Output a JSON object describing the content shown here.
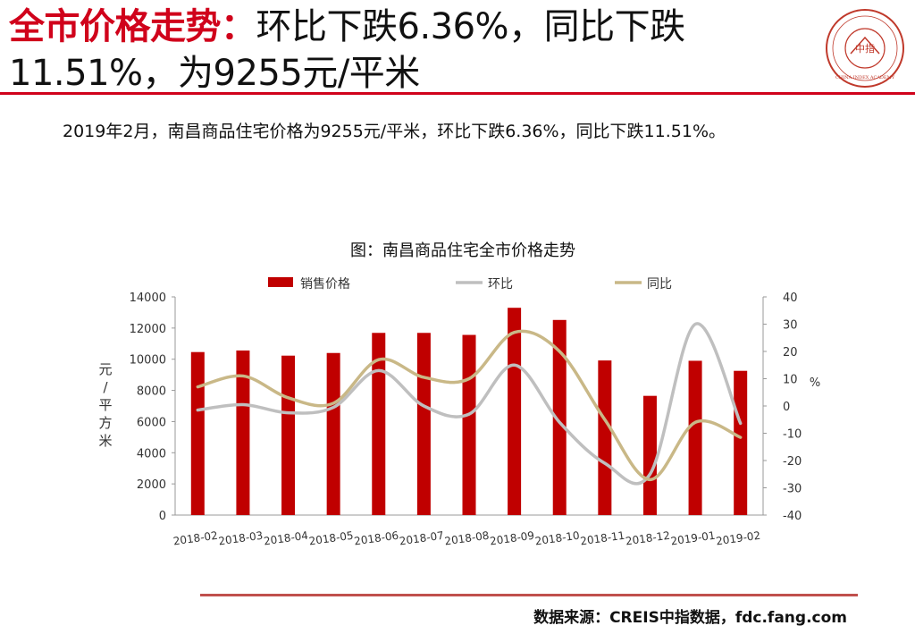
{
  "header": {
    "title_highlight": "全市价格走势：",
    "title_rest": "环比下跌6.36%，同比下跌11.51%，为9255元/平米"
  },
  "summary": "2019年2月，南昌商品住宅价格为9255元/平米，环比下跌6.36%，同比下跌11.51%。",
  "colors": {
    "accent": "#d0021b",
    "bar": "#c00000",
    "mom_line": "#bfbfbf",
    "yoy_line": "#c9b887"
  },
  "logo": {
    "icon": "china-index-academy-seal",
    "center_text": "中指",
    "ring_text": "CHINA INDEX ACADEMY"
  },
  "chart_data": {
    "type": "bar",
    "title": "图：南昌商品住宅全市价格走势",
    "categories": [
      "2018-02",
      "2018-03",
      "2018-04",
      "2018-05",
      "2018-06",
      "2018-07",
      "2018-08",
      "2018-09",
      "2018-10",
      "2018-11",
      "2018-12",
      "2019-01",
      "2019-02"
    ],
    "series": [
      {
        "name": "销售价格",
        "type": "bar",
        "axis": "left",
        "values": [
          10460,
          10560,
          10230,
          10400,
          11690,
          11690,
          11560,
          13300,
          12520,
          9920,
          7650,
          9900,
          9255
        ]
      },
      {
        "name": "环比",
        "type": "line",
        "axis": "right",
        "values": [
          -1.5,
          0.5,
          -2.5,
          -0.5,
          13,
          0,
          -3,
          15,
          -6,
          -21,
          -25,
          30,
          -6.36
        ]
      },
      {
        "name": "同比",
        "type": "line",
        "axis": "right",
        "values": [
          7,
          11,
          3,
          1,
          17,
          10.5,
          10,
          27,
          20,
          -5,
          -27,
          -6,
          -11.51
        ]
      }
    ],
    "y_left": {
      "label": "元/平方米",
      "min": 0,
      "max": 14000,
      "ticks": [
        0,
        2000,
        4000,
        6000,
        8000,
        10000,
        12000,
        14000
      ]
    },
    "y_right": {
      "label": "%",
      "min": -40,
      "max": 40,
      "ticks": [
        -40,
        -30,
        -20,
        -10,
        0,
        10,
        20,
        30,
        40
      ]
    },
    "legend_position": "top",
    "grid": false
  },
  "footer": {
    "source": "数据来源：CREIS中指数据，fdc.fang.com"
  }
}
